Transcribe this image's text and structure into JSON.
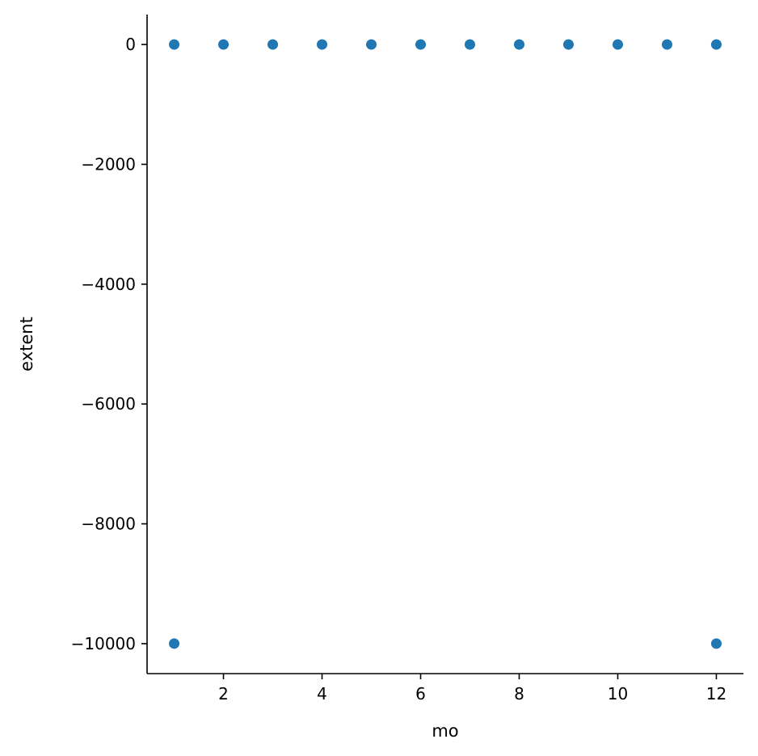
{
  "chart_data": {
    "type": "scatter",
    "title": "",
    "xlabel": "mo",
    "ylabel": "extent",
    "xlim": [
      0.45,
      12.55
    ],
    "ylim": [
      -10500,
      500
    ],
    "xticks": [
      2,
      4,
      6,
      8,
      10,
      12
    ],
    "xtick_labels": [
      "2",
      "4",
      "6",
      "8",
      "10",
      "12"
    ],
    "yticks": [
      0,
      -2000,
      -4000,
      -6000,
      -8000,
      -10000
    ],
    "ytick_labels": [
      "0",
      "−2000",
      "−4000",
      "−6000",
      "−8000",
      "−10000"
    ],
    "grid": false,
    "marker_color": "#1f77b4",
    "points": [
      {
        "x": 1,
        "y": 0
      },
      {
        "x": 2,
        "y": 0
      },
      {
        "x": 3,
        "y": 0
      },
      {
        "x": 4,
        "y": 0
      },
      {
        "x": 5,
        "y": 0
      },
      {
        "x": 6,
        "y": 0
      },
      {
        "x": 7,
        "y": 0
      },
      {
        "x": 8,
        "y": 0
      },
      {
        "x": 9,
        "y": 0
      },
      {
        "x": 10,
        "y": 0
      },
      {
        "x": 11,
        "y": 0
      },
      {
        "x": 12,
        "y": 0
      },
      {
        "x": 1,
        "y": -9999
      },
      {
        "x": 12,
        "y": -9999
      }
    ]
  }
}
